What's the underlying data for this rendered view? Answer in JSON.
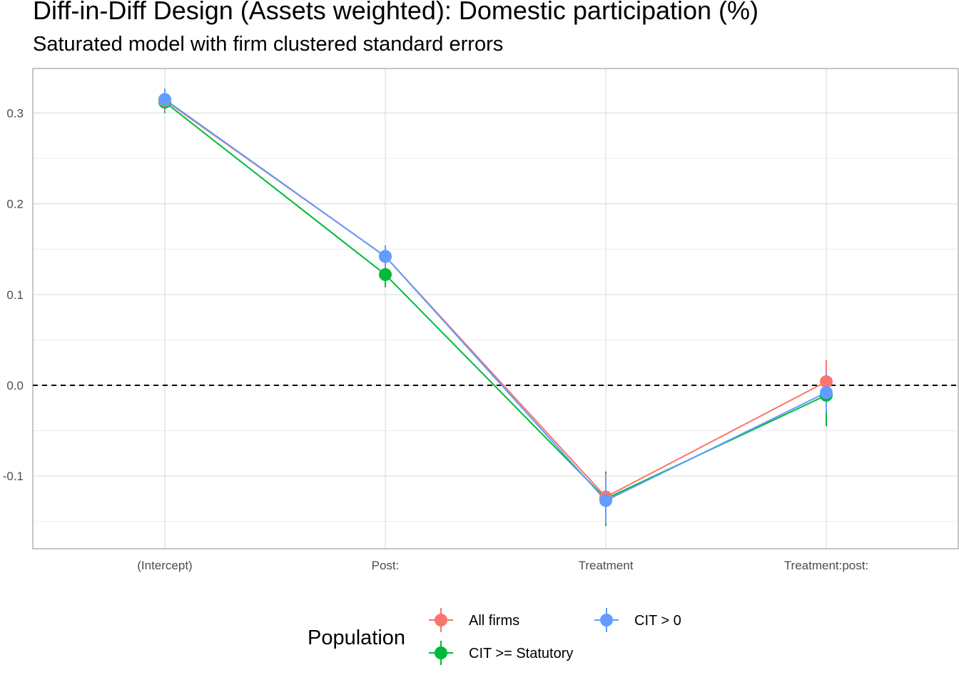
{
  "header": {
    "title": "Diff-in-Diff Design (Assets weighted): Domestic participation (%)",
    "subtitle": "Saturated model with firm clustered standard errors"
  },
  "chart_data": {
    "type": "line",
    "title": "Diff-in-Diff Design (Assets weighted): Domestic participation (%)",
    "subtitle": "Saturated model with firm clustered standard errors",
    "xlabel": "",
    "ylabel": "",
    "categories": [
      "(Intercept)",
      "Post:",
      "Treatment",
      "Treatment:post:"
    ],
    "ylim": [
      -0.18,
      0.35
    ],
    "y_ticks": [
      -0.1,
      0.0,
      0.1,
      0.2,
      0.3
    ],
    "y_tick_labels": [
      "-0.1",
      "0.0",
      "0.1",
      "0.2",
      "0.3"
    ],
    "reference_line": 0.0,
    "grid": true,
    "legend": {
      "title": "Population",
      "position": "bottom"
    },
    "series": [
      {
        "name": "All firms",
        "color": "#F8766D",
        "values": [
          0.314,
          0.142,
          -0.123,
          0.004
        ],
        "lower": [
          0.302,
          0.13,
          -0.148,
          -0.02
        ],
        "upper": [
          0.326,
          0.154,
          -0.098,
          0.028
        ]
      },
      {
        "name": "CIT >= Statutory",
        "color": "#00BA38",
        "values": [
          0.312,
          0.122,
          -0.125,
          -0.011
        ],
        "lower": [
          0.3,
          0.108,
          -0.155,
          -0.045
        ],
        "upper": [
          0.324,
          0.136,
          -0.095,
          0.023
        ]
      },
      {
        "name": "CIT > 0",
        "color": "#619CFF",
        "values": [
          0.315,
          0.142,
          -0.127,
          -0.008
        ],
        "lower": [
          0.303,
          0.13,
          -0.152,
          -0.03
        ],
        "upper": [
          0.327,
          0.154,
          -0.102,
          0.014
        ]
      }
    ]
  }
}
